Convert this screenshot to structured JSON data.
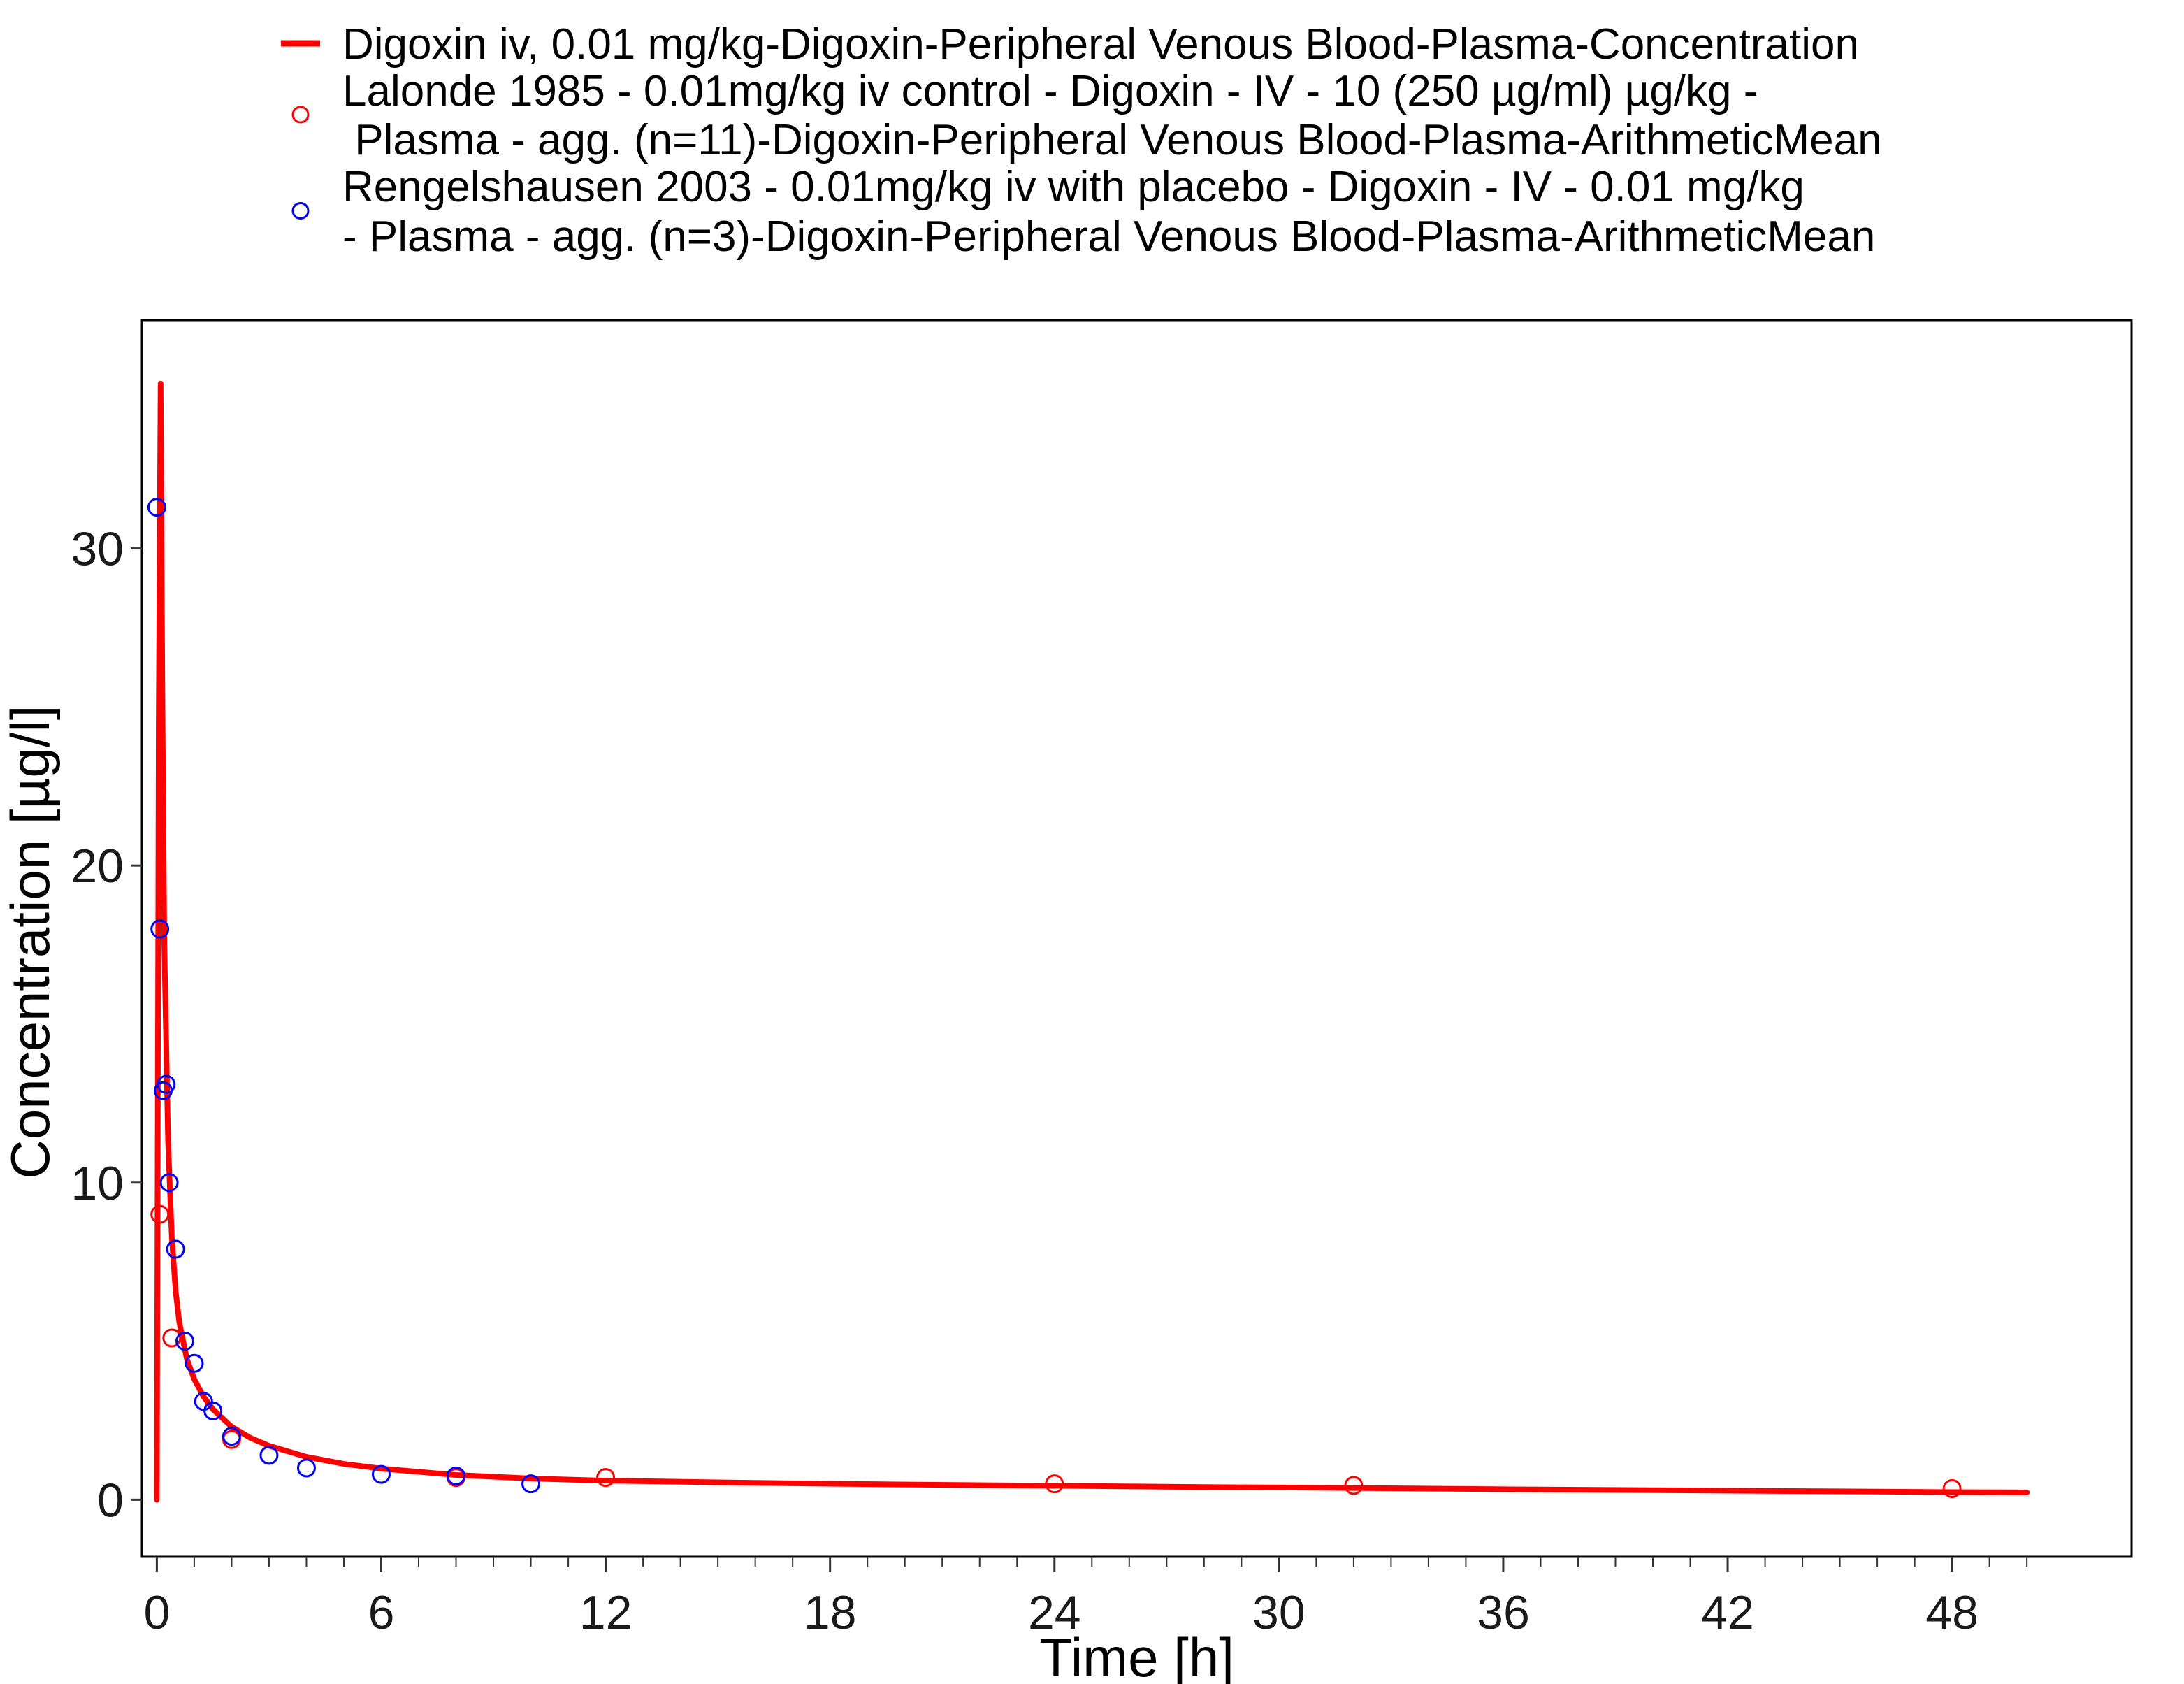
{
  "chart_data": {
    "type": "scatter",
    "xlabel": "Time [h]",
    "ylabel": "Concentration [µg/l]",
    "xlim": [
      -0.4,
      52.8
    ],
    "ylim": [
      -1.8,
      37.2
    ],
    "x_ticks": [
      0,
      6,
      12,
      18,
      24,
      30,
      36,
      42,
      48
    ],
    "y_ticks": [
      0,
      10,
      20,
      30
    ],
    "x_minor_step": 1,
    "grid": false,
    "legend_position": "top",
    "series": [
      {
        "name_lines": [
          "Digoxin iv, 0.01 mg/kg-Digoxin-Peripheral Venous Blood-Plasma-Concentration"
        ],
        "kind": "line",
        "color": "#ff0000",
        "x": [
          0,
          0.05,
          0.1,
          0.15,
          0.2,
          0.3,
          0.4,
          0.5,
          0.6,
          0.8,
          1.0,
          1.25,
          1.5,
          2.0,
          2.5,
          3.0,
          4.0,
          5.0,
          6.0,
          8.0,
          10.0,
          12.0,
          16.0,
          20.0,
          24.0,
          28.0,
          32.0,
          36.0,
          40.0,
          44.0,
          48.0,
          50.0
        ],
        "y": [
          0,
          24.5,
          35.2,
          25.0,
          17.5,
          11.3,
          8.3,
          6.6,
          5.6,
          4.45,
          3.8,
          3.25,
          2.85,
          2.3,
          1.95,
          1.7,
          1.35,
          1.13,
          0.98,
          0.78,
          0.67,
          0.6,
          0.53,
          0.48,
          0.44,
          0.4,
          0.37,
          0.33,
          0.3,
          0.27,
          0.24,
          0.23
        ]
      },
      {
        "name_lines": [
          "Lalonde 1985 - 0.01mg/kg iv control - Digoxin - IV - 10 (250 µg/ml) µg/kg -",
          " Plasma - agg. (n=11)-Digoxin-Peripheral Venous Blood-Plasma-ArithmeticMean"
        ],
        "kind": "points",
        "color": "#ff0000",
        "x": [
          0.08,
          0.4,
          1.5,
          2.0,
          8.0,
          12.0,
          24.0,
          32.0,
          48.0
        ],
        "y": [
          9.0,
          5.1,
          2.8,
          1.9,
          0.7,
          0.7,
          0.5,
          0.45,
          0.35
        ]
      },
      {
        "name_lines": [
          "Rengelshausen 2003 - 0.01mg/kg iv with placebo - Digoxin - IV - 0.01 mg/kg",
          "- Plasma - agg. (n=3)-Digoxin-Peripheral Venous Blood-Plasma-ArithmeticMean"
        ],
        "kind": "points",
        "color": "#0000ff",
        "x": [
          0.0,
          0.08,
          0.17,
          0.25,
          0.33,
          0.5,
          0.75,
          1.0,
          1.25,
          1.5,
          2.0,
          3.0,
          4.0,
          6.0,
          8.0,
          10.0
        ],
        "y": [
          31.3,
          18.0,
          12.9,
          13.1,
          10.0,
          7.9,
          5.0,
          4.3,
          3.1,
          2.8,
          2.0,
          1.4,
          1.0,
          0.8,
          0.75,
          0.5
        ]
      }
    ]
  }
}
